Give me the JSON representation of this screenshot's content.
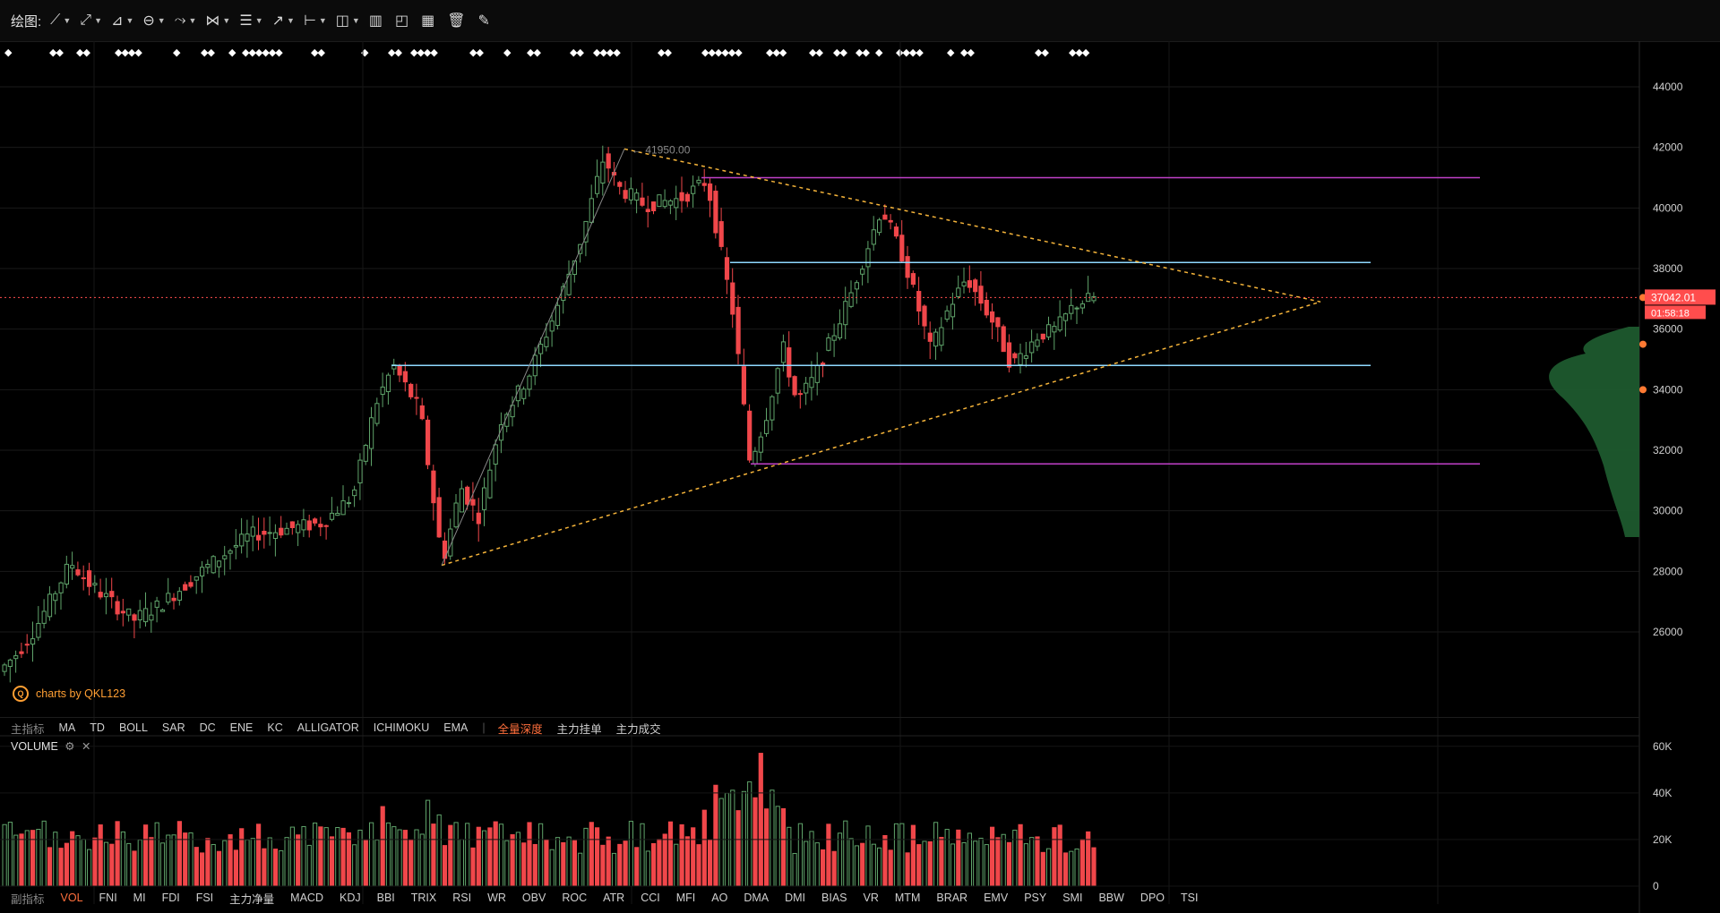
{
  "toolbar": {
    "label": "绘图:",
    "tools": [
      {
        "name": "trend-line-tool",
        "glyph": "⟋",
        "dropdown": true
      },
      {
        "name": "ray-tool",
        "glyph": "⤢",
        "dropdown": true
      },
      {
        "name": "channel-tool",
        "glyph": "⊿",
        "dropdown": true
      },
      {
        "name": "ellipse-tool",
        "glyph": "⊖",
        "dropdown": true
      },
      {
        "name": "zigzag-tool",
        "glyph": "⤳",
        "dropdown": true
      },
      {
        "name": "pattern-tool",
        "glyph": "⋈",
        "dropdown": true
      },
      {
        "name": "fibonacci-tool",
        "glyph": "☰",
        "dropdown": true
      },
      {
        "name": "arrow-tool",
        "glyph": "↗",
        "dropdown": true
      },
      {
        "name": "measure-tool",
        "glyph": "⊢",
        "dropdown": true
      },
      {
        "name": "note-tool",
        "glyph": "◫",
        "dropdown": true
      },
      {
        "name": "indicator-bars-tool",
        "glyph": "▥",
        "dropdown": false
      },
      {
        "name": "chart-view-tool",
        "glyph": "◰",
        "dropdown": false
      },
      {
        "name": "bars-view-tool",
        "glyph": "▦",
        "dropdown": false
      },
      {
        "name": "delete-icon",
        "glyph": "🗑",
        "dropdown": false
      },
      {
        "name": "pen-icon",
        "glyph": "✎",
        "dropdown": false
      }
    ]
  },
  "markers": [
    {
      "x": 5,
      "t": "◆"
    },
    {
      "x": 55,
      "t": "◆◆"
    },
    {
      "x": 85,
      "t": "◆◆"
    },
    {
      "x": 128,
      "t": "◆◆◆◆"
    },
    {
      "x": 193,
      "t": "◆"
    },
    {
      "x": 224,
      "t": "◆◆"
    },
    {
      "x": 255,
      "t": "◆"
    },
    {
      "x": 270,
      "t": "◆◆◆◆◆◆"
    },
    {
      "x": 347,
      "t": "◆◆"
    },
    {
      "x": 403,
      "t": "◆"
    },
    {
      "x": 433,
      "t": "◆◆"
    },
    {
      "x": 458,
      "t": "◆◆◆◆"
    },
    {
      "x": 524,
      "t": "◆◆"
    },
    {
      "x": 562,
      "t": "◆"
    },
    {
      "x": 588,
      "t": "◆◆"
    },
    {
      "x": 636,
      "t": "◆◆"
    },
    {
      "x": 662,
      "t": "◆◆◆◆"
    },
    {
      "x": 734,
      "t": "◆◆"
    },
    {
      "x": 783,
      "t": "◆◆◆◆◆◆"
    },
    {
      "x": 855,
      "t": "◆◆◆"
    },
    {
      "x": 903,
      "t": "◆◆"
    },
    {
      "x": 930,
      "t": "◆◆"
    },
    {
      "x": 955,
      "t": "◆◆"
    },
    {
      "x": 977,
      "t": "◆"
    },
    {
      "x": 1000,
      "t": "◆◆◆◆"
    },
    {
      "x": 1057,
      "t": "◆"
    },
    {
      "x": 1072,
      "t": "◆◆"
    },
    {
      "x": 1155,
      "t": "◆◆"
    },
    {
      "x": 1193,
      "t": "◆◆◆"
    }
  ],
  "price_axis": {
    "labels": [
      "44000",
      "42000",
      "40000",
      "38000",
      "36000",
      "34000",
      "32000",
      "30000",
      "28000",
      "26000"
    ],
    "current_price": "37042.01",
    "countdown": "01:58:18"
  },
  "chart_annotations": {
    "peak_label": "41950.00",
    "watermark": "charts by QKL123"
  },
  "main_indicator_tabs": {
    "label": "主指标",
    "items": [
      "MA",
      "TD",
      "BOLL",
      "SAR",
      "DC",
      "ENE",
      "KC",
      "ALLIGATOR",
      "ICHIMOKU",
      "EMA"
    ],
    "extra": [
      "全量深度",
      "主力挂单",
      "主力成交"
    ],
    "active": "全量深度"
  },
  "volume_panel": {
    "label": "VOLUME",
    "axis_labels": [
      "60K",
      "40K",
      "20K",
      "0"
    ]
  },
  "sub_indicator_tabs": {
    "label": "副指标",
    "items": [
      "VOL",
      "FNI",
      "MI",
      "FDI",
      "FSI",
      "主力净量",
      "MACD",
      "KDJ",
      "BBI",
      "TRIX",
      "RSI",
      "WR",
      "OBV",
      "ROC",
      "ATR",
      "CCI",
      "MFI",
      "AO",
      "DMA",
      "DMI",
      "BIAS",
      "VR",
      "MTM",
      "BRAR",
      "EMV",
      "PSY",
      "SMI",
      "BBW",
      "DPO",
      "TSI"
    ],
    "active": "VOL"
  },
  "colors": {
    "up": "#5fa36a",
    "down": "#f0474a",
    "support_resistance": "#8fd9ff",
    "range_line": "#c040c8",
    "triangle": "#f5b43a",
    "current_price": "#ff4d4d",
    "depth": "#1d5a2e"
  },
  "chart_data": {
    "type": "candlestick",
    "ylim": [
      24000,
      45000
    ],
    "peak": 41950,
    "current": 37042.01,
    "horizontal_levels": [
      41000,
      38200,
      34800,
      31550
    ],
    "triangle": {
      "upper_start": 41950,
      "lower_start": 28200,
      "apex": 36900
    },
    "depth_markers": [
      37042,
      35500,
      34000
    ]
  }
}
